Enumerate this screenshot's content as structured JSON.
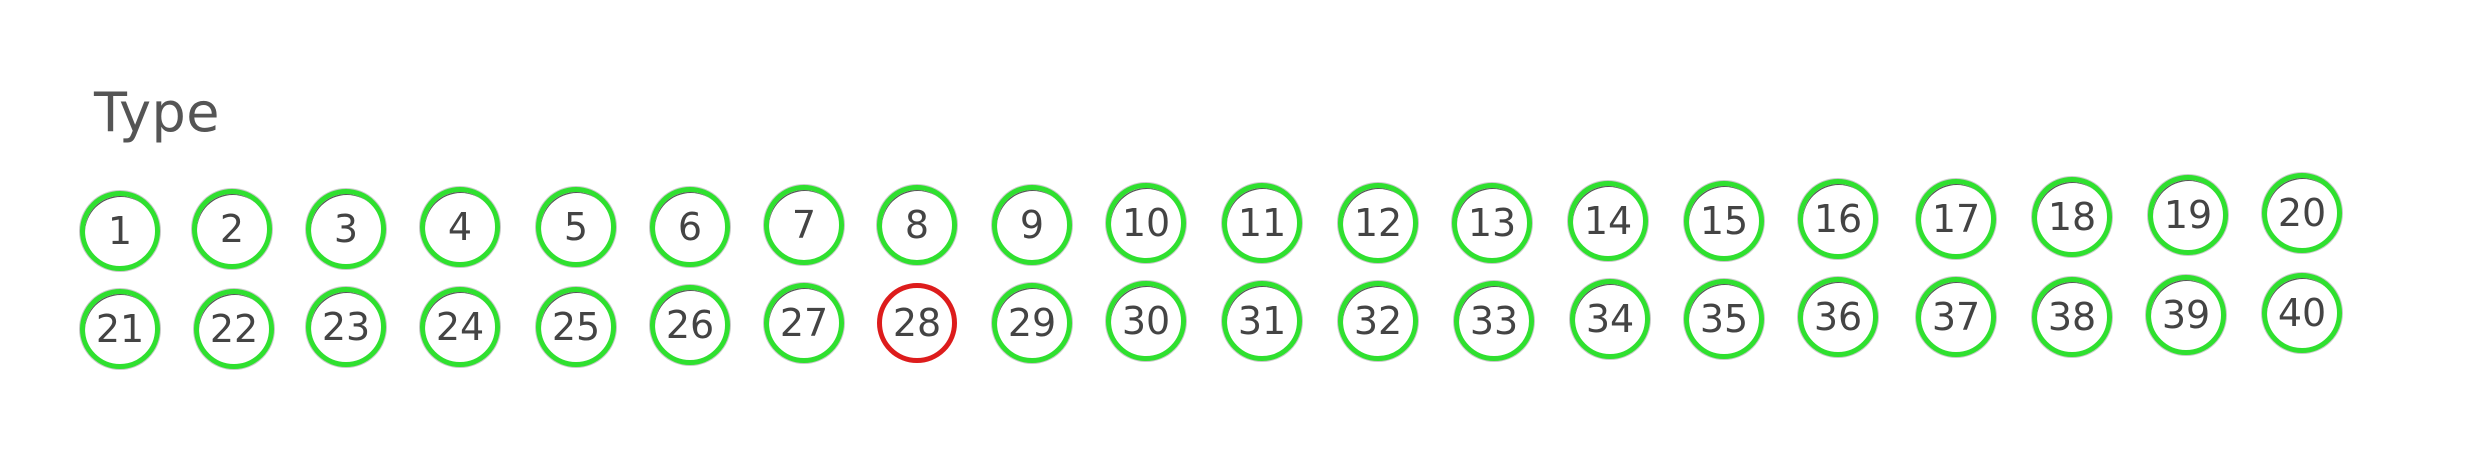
{
  "title": "Type",
  "colors": {
    "ok": "#2fe02f",
    "error": "#dd1c1c",
    "text": "#444444"
  },
  "rows": [
    {
      "items": [
        {
          "label": "1",
          "state": "ok"
        },
        {
          "label": "2",
          "state": "ok"
        },
        {
          "label": "3",
          "state": "ok"
        },
        {
          "label": "4",
          "state": "ok"
        },
        {
          "label": "5",
          "state": "ok"
        },
        {
          "label": "6",
          "state": "ok"
        },
        {
          "label": "7",
          "state": "ok"
        },
        {
          "label": "8",
          "state": "ok"
        },
        {
          "label": "9",
          "state": "ok"
        },
        {
          "label": "10",
          "state": "ok"
        },
        {
          "label": "11",
          "state": "ok"
        },
        {
          "label": "12",
          "state": "ok"
        },
        {
          "label": "13",
          "state": "ok"
        },
        {
          "label": "14",
          "state": "ok"
        },
        {
          "label": "15",
          "state": "ok"
        },
        {
          "label": "16",
          "state": "ok"
        },
        {
          "label": "17",
          "state": "ok"
        },
        {
          "label": "18",
          "state": "ok"
        },
        {
          "label": "19",
          "state": "ok"
        },
        {
          "label": "20",
          "state": "ok"
        }
      ]
    },
    {
      "items": [
        {
          "label": "21",
          "state": "ok"
        },
        {
          "label": "22",
          "state": "ok"
        },
        {
          "label": "23",
          "state": "ok"
        },
        {
          "label": "24",
          "state": "ok"
        },
        {
          "label": "25",
          "state": "ok"
        },
        {
          "label": "26",
          "state": "ok"
        },
        {
          "label": "27",
          "state": "ok"
        },
        {
          "label": "28",
          "state": "error"
        },
        {
          "label": "29",
          "state": "ok"
        },
        {
          "label": "30",
          "state": "ok"
        },
        {
          "label": "31",
          "state": "ok"
        },
        {
          "label": "32",
          "state": "ok"
        },
        {
          "label": "33",
          "state": "ok"
        },
        {
          "label": "34",
          "state": "ok"
        },
        {
          "label": "35",
          "state": "ok"
        },
        {
          "label": "36",
          "state": "ok"
        },
        {
          "label": "37",
          "state": "ok"
        },
        {
          "label": "38",
          "state": "ok"
        },
        {
          "label": "39",
          "state": "ok"
        },
        {
          "label": "40",
          "state": "ok"
        }
      ]
    }
  ]
}
